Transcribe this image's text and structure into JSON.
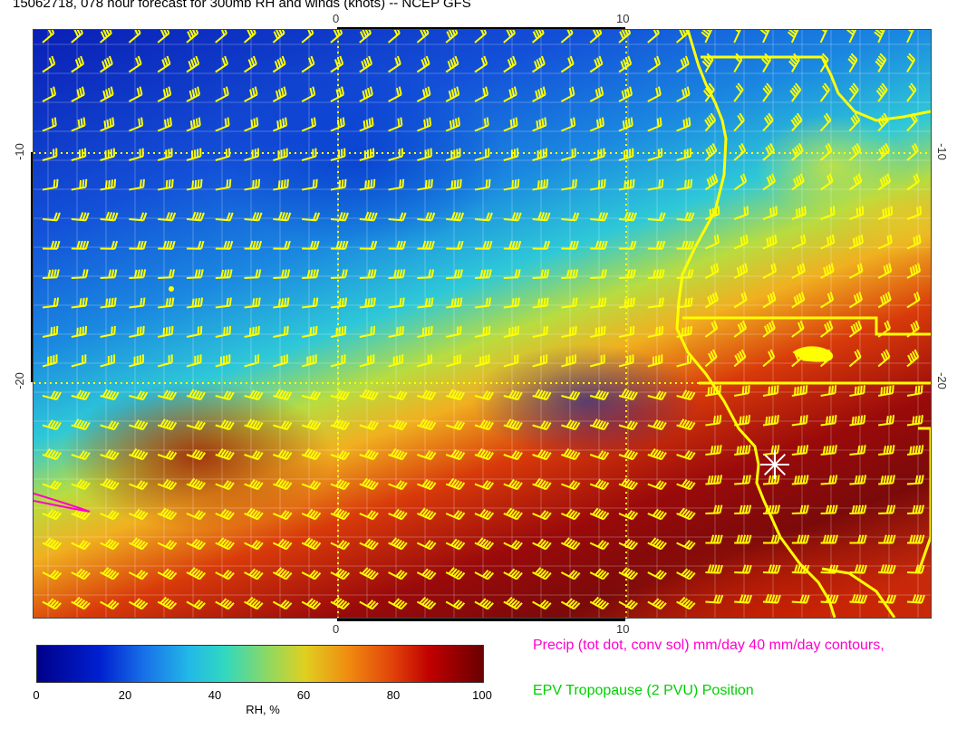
{
  "title": "15062718, 078 hour forecast for 300mb RH and winds (knots) -- NCEP GFS",
  "axes": {
    "top": [
      "0",
      "10"
    ],
    "bottom": [
      "0",
      "10"
    ],
    "left": [
      "-10",
      "-20"
    ],
    "right": [
      "-10",
      "-20"
    ]
  },
  "colorbar": {
    "ticks": [
      "0",
      "20",
      "40",
      "60",
      "80",
      "100"
    ],
    "label": "RH, %",
    "colors": [
      "#00008b",
      "#1870e8",
      "#30d8c0",
      "#e0d020",
      "#e0400a",
      "#6a0000"
    ]
  },
  "legend": {
    "precip": "Precip (tot dot, conv sol) mm/day 40 mm/day contours,",
    "epv": "EPV Tropopause (2 PVU) Position"
  },
  "styles": {
    "barb_color": "#ffff00",
    "coast_color": "#ffff00",
    "grid_color": "#ffffff",
    "precip_color": "#ff00cc",
    "epv_color": "#00d000"
  }
}
